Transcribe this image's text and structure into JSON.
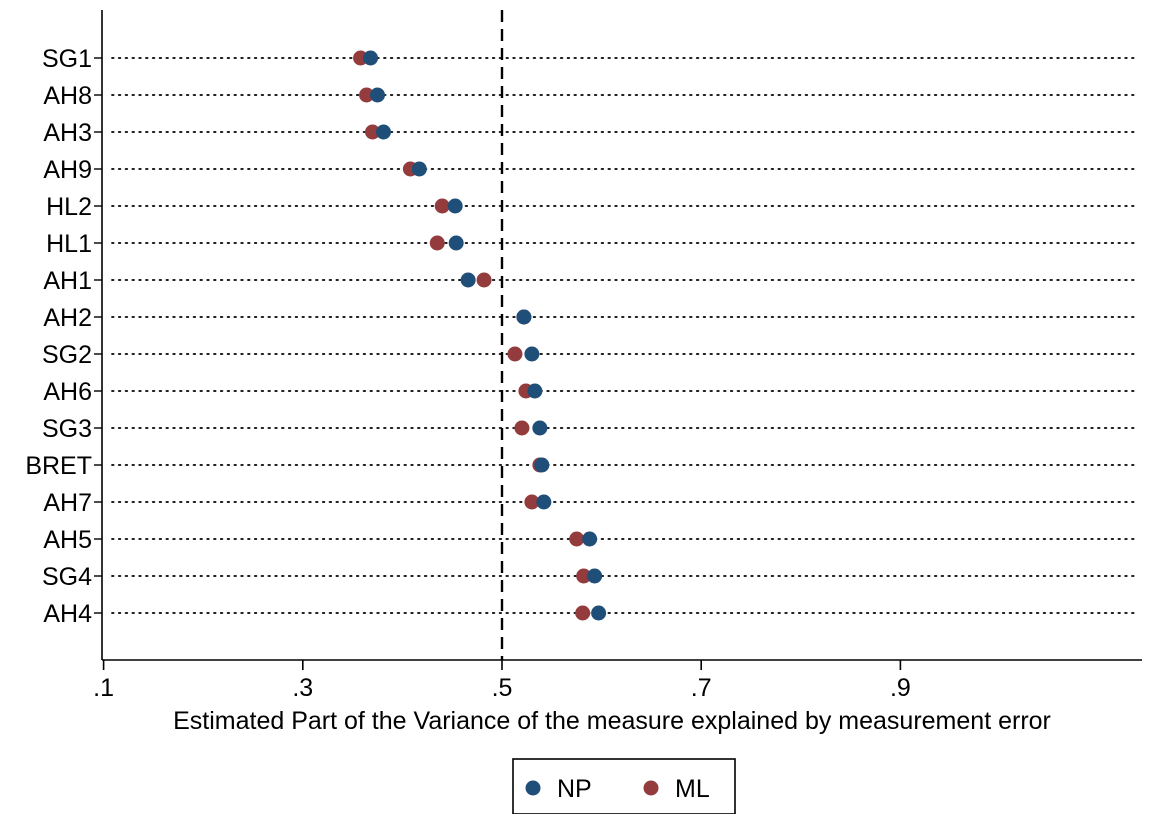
{
  "chart_data": {
    "type": "scatter",
    "orientation": "horizontal-dot",
    "title": "",
    "xlabel": "Estimated Part of the Variance of the measure explained by measurement error",
    "ylabel": "",
    "xlim": [
      0,
      1.04
    ],
    "xticks": [
      0.1,
      0.3,
      0.5,
      0.7,
      0.9
    ],
    "xtick_labels": [
      ".1",
      ".3",
      ".5",
      ".7",
      ".9"
    ],
    "reference_line": 0.5,
    "grid": "dotted horizontal",
    "legend_position": "bottom-center",
    "categories": [
      "SG1",
      "AH8",
      "AH3",
      "AH9",
      "HL2",
      "HL1",
      "AH1",
      "AH2",
      "SG2",
      "AH6",
      "SG3",
      "BRET",
      "AH7",
      "AH5",
      "SG4",
      "AH4"
    ],
    "series": [
      {
        "name": "NP",
        "color": "#1f4e79",
        "values": [
          0.368,
          0.375,
          0.381,
          0.417,
          0.453,
          0.454,
          0.466,
          0.522,
          0.53,
          0.533,
          0.538,
          0.54,
          0.542,
          0.588,
          0.593,
          0.597
        ]
      },
      {
        "name": "ML",
        "color": "#943b3d",
        "values": [
          0.358,
          0.364,
          0.37,
          0.408,
          0.44,
          0.435,
          0.482,
          0.522,
          0.513,
          0.524,
          0.52,
          0.538,
          0.53,
          0.575,
          0.582,
          0.581
        ]
      }
    ]
  }
}
